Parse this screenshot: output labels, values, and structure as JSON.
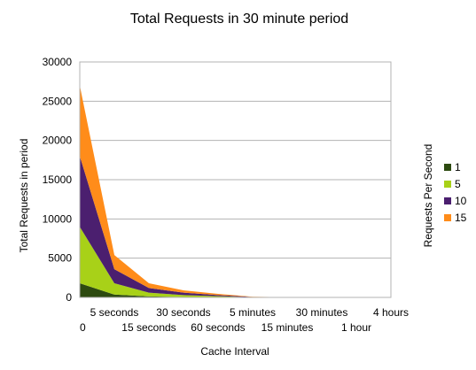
{
  "chart_data": {
    "type": "area",
    "stacked": true,
    "title": "Total Requests in 30 minute period",
    "xlabel": "Cache Interval",
    "ylabel": "Total Requests in period",
    "legend_title": "Requests Per Second",
    "legend_position": "right",
    "grid": true,
    "ylim": [
      0,
      30000
    ],
    "yticks": [
      0,
      5000,
      10000,
      15000,
      20000,
      25000,
      30000
    ],
    "categories": [
      "0",
      "5 seconds",
      "15 seconds",
      "30 seconds",
      "60 seconds",
      "5 minutes",
      "15 minutes",
      "30 minutes",
      "1 hour",
      "4 hours"
    ],
    "series": [
      {
        "name": "1",
        "color": "#2d4a10",
        "values": [
          1800,
          360,
          120,
          60,
          30,
          6,
          2,
          1,
          0.5,
          0.1
        ]
      },
      {
        "name": "5",
        "color": "#a8d118",
        "values": [
          7200,
          1440,
          480,
          240,
          120,
          24,
          8,
          4,
          2,
          0.5
        ]
      },
      {
        "name": "10",
        "color": "#4b1f6f",
        "values": [
          9000,
          1800,
          600,
          300,
          150,
          30,
          10,
          5,
          2.5,
          0.6
        ]
      },
      {
        "name": "15",
        "color": "#ff8c1a",
        "values": [
          9000,
          1800,
          600,
          300,
          150,
          30,
          10,
          5,
          2.5,
          0.6
        ]
      }
    ]
  }
}
